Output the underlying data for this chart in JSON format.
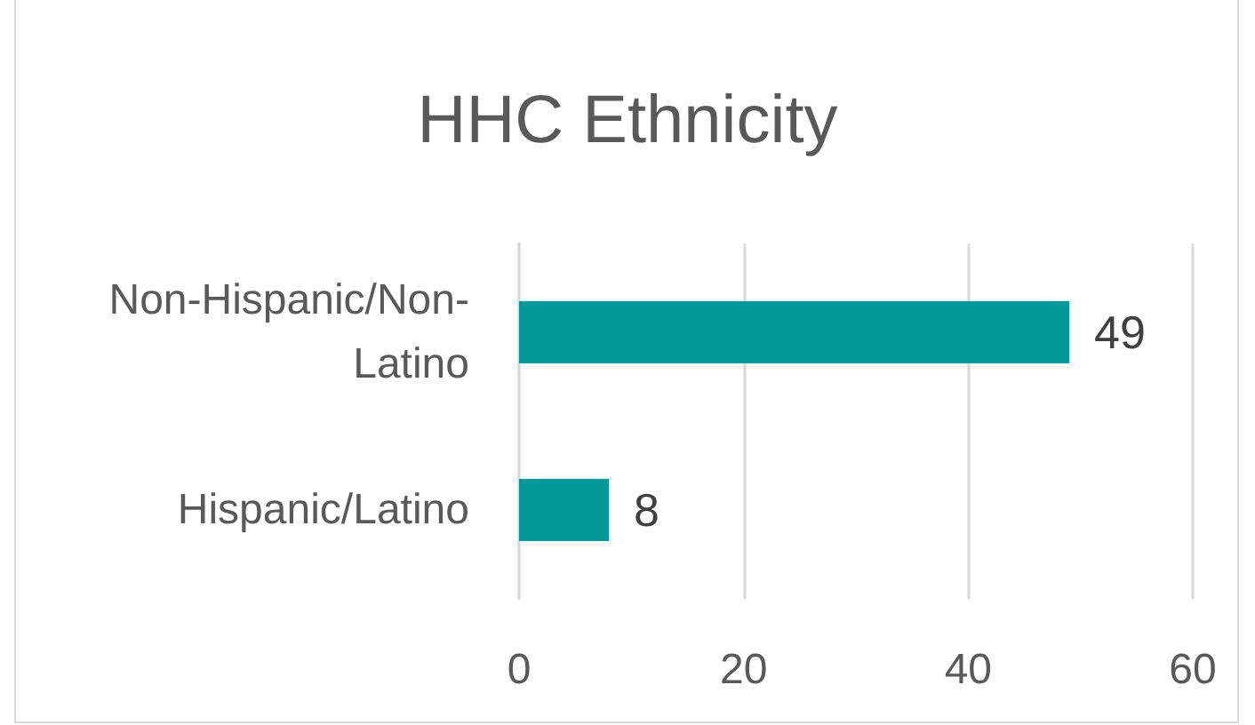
{
  "chart_data": {
    "type": "bar",
    "orientation": "horizontal",
    "title": "HHC Ethnicity",
    "categories": [
      "Non-Hispanic/Non-Latino",
      "Hispanic/Latino"
    ],
    "values": [
      49,
      8
    ],
    "color": "#009999",
    "xlim": [
      0,
      60
    ],
    "xticks": [
      0,
      20,
      40,
      60
    ],
    "grid": "x",
    "data_labels": true
  }
}
